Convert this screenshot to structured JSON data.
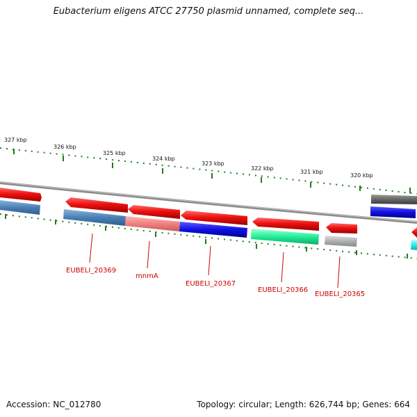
{
  "title": "Eubacterium eligens ATCC 27750 plasmid unnamed, complete seq...",
  "footer": {
    "accession": "Accession: NC_012780",
    "summary": "Topology: circular; Length: 626,744 bp; Genes: 664"
  },
  "scale": {
    "unit": "kbp",
    "ticks": [
      "327 kbp",
      "326 kbp",
      "325 kbp",
      "324 kbp",
      "323 kbp",
      "322 kbp",
      "321 kbp",
      "320 kbp"
    ]
  },
  "genes": {
    "labeled": [
      "EUBELI_20369",
      "mnmA",
      "EUBELI_20367",
      "EUBELI_20366",
      "EUBELI_20365"
    ]
  },
  "colors": {
    "backbone": "#8c8c8c",
    "tick": "#1f7a1f",
    "gene_label": "#cc0000",
    "cds_forward": "#ee1111",
    "steelblue": "#4a7fb5",
    "salmon": "#f08080",
    "blue": "#1010e0",
    "spring_green": "#22ee99",
    "light_gray": "#b0b0b0",
    "dark_gray": "#666666",
    "cyan": "#22eeee"
  }
}
